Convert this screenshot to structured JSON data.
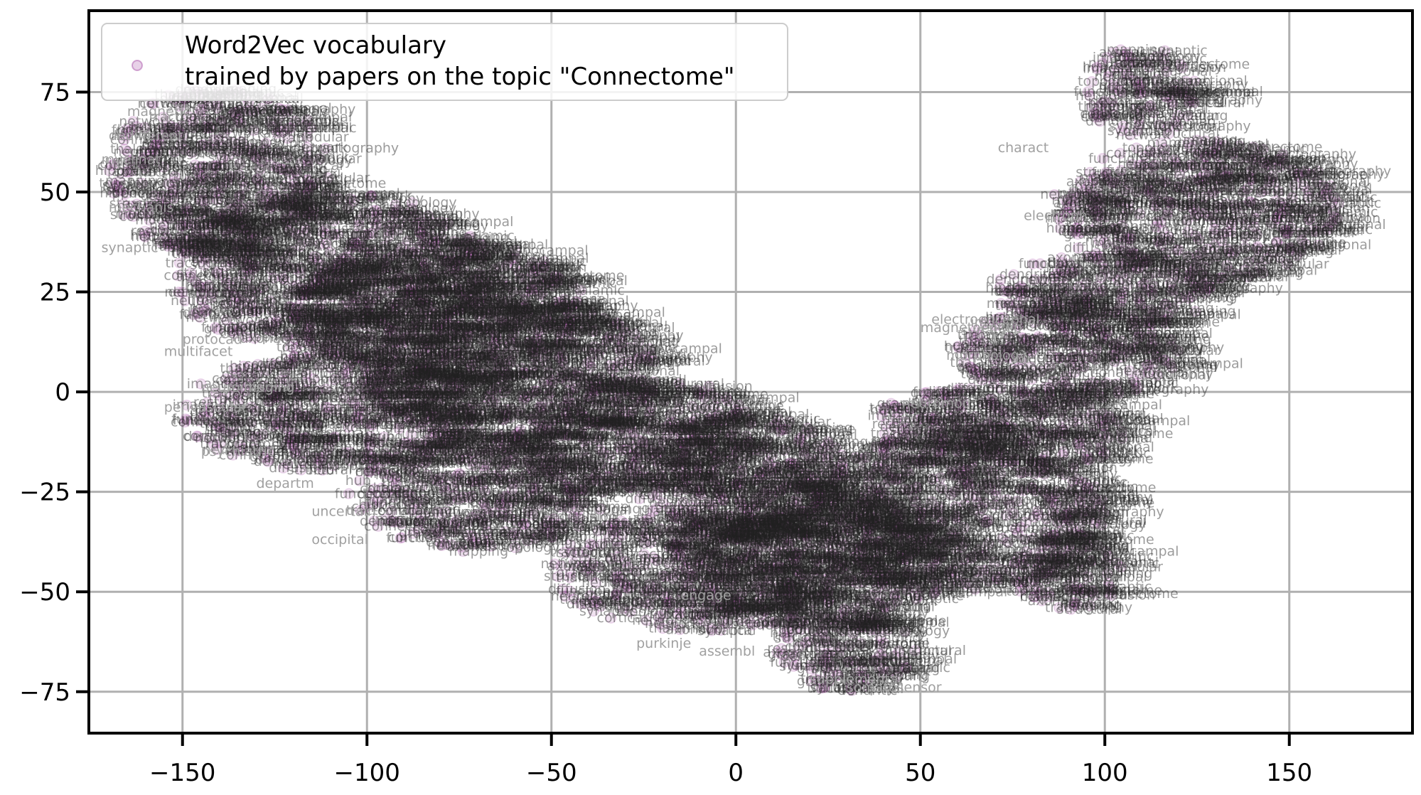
{
  "chart_data": {
    "type": "scatter",
    "legend": {
      "placement": "top-left",
      "entries": [
        {
          "line1": "Word2Vec vocabulary",
          "line2": "trained by papers on the topic \"Connectome\""
        }
      ]
    },
    "x_ticks": [
      -150,
      -100,
      -50,
      0,
      50,
      100,
      150
    ],
    "y_ticks": [
      -75,
      -50,
      -25,
      0,
      25,
      50,
      75
    ],
    "x_tick_labels": [
      "−150",
      "−100",
      "−50",
      "0",
      "50",
      "100",
      "150"
    ],
    "y_tick_labels": [
      "−75",
      "−50",
      "−25",
      "0",
      "25",
      "50",
      "75"
    ],
    "xlim": [
      -175,
      183
    ],
    "ylim": [
      -85,
      95
    ],
    "grid": true,
    "colors": {
      "marker": "#8b1a8b",
      "label_dark": "#222222",
      "label_light": "#a0a0a0",
      "grid": "#b0b0b0"
    },
    "clusters": [
      {
        "x": -140,
        "y": 55,
        "rx": 30,
        "ry": 22
      },
      {
        "x": -110,
        "y": 30,
        "rx": 45,
        "ry": 20
      },
      {
        "x": -80,
        "y": 20,
        "rx": 40,
        "ry": 18
      },
      {
        "x": -60,
        "y": 5,
        "rx": 40,
        "ry": 18
      },
      {
        "x": -110,
        "y": -5,
        "rx": 40,
        "ry": 15
      },
      {
        "x": -70,
        "y": -25,
        "rx": 35,
        "ry": 15
      },
      {
        "x": -30,
        "y": -10,
        "rx": 35,
        "ry": 15
      },
      {
        "x": 0,
        "y": -20,
        "rx": 30,
        "ry": 15
      },
      {
        "x": -10,
        "y": -45,
        "rx": 40,
        "ry": 15
      },
      {
        "x": 20,
        "y": -40,
        "rx": 40,
        "ry": 20
      },
      {
        "x": 30,
        "y": -65,
        "rx": 20,
        "ry": 10
      },
      {
        "x": 60,
        "y": -30,
        "rx": 40,
        "ry": 20
      },
      {
        "x": 70,
        "y": -10,
        "rx": 35,
        "ry": 12
      },
      {
        "x": 90,
        "y": 10,
        "rx": 30,
        "ry": 12
      },
      {
        "x": 100,
        "y": 25,
        "rx": 30,
        "ry": 10
      },
      {
        "x": 125,
        "y": 45,
        "rx": 40,
        "ry": 18
      },
      {
        "x": 110,
        "y": 75,
        "rx": 15,
        "ry": 12
      },
      {
        "x": 90,
        "y": -45,
        "rx": 15,
        "ry": 10
      }
    ],
    "sample_words": [
      "connectome",
      "neuronal",
      "synaptic",
      "cortical",
      "imaging",
      "tractography",
      "diffusion",
      "network",
      "functional",
      "structural",
      "axonal",
      "dendritic",
      "hippocampal",
      "thalamic",
      "mapping",
      "resting",
      "modular",
      "hub",
      "graph",
      "topology"
    ],
    "edge_words": [
      {
        "text": "electroencephal",
        "x": 53,
        "y": 17
      },
      {
        "text": "magnetoencep",
        "x": 50,
        "y": 15
      },
      {
        "text": "electroph",
        "x": 78,
        "y": 43
      },
      {
        "text": "somatosensor",
        "x": 30,
        "y": -75
      },
      {
        "text": "supplementar",
        "x": 20,
        "y": -73
      },
      {
        "text": "purkinje",
        "x": -27,
        "y": -64
      },
      {
        "text": "psychiatric",
        "x": -145,
        "y": -16
      },
      {
        "text": "neuroimaging",
        "x": -145,
        "y": 0
      },
      {
        "text": "multifacet",
        "x": -155,
        "y": 9
      },
      {
        "text": "protocad",
        "x": -150,
        "y": 12
      },
      {
        "text": "mechanis",
        "x": -170,
        "y": 45
      },
      {
        "text": "myelinat",
        "x": -172,
        "y": 57
      },
      {
        "text": "dedifferent",
        "x": -170,
        "y": 63
      },
      {
        "text": "magnetic",
        "x": -165,
        "y": 69
      },
      {
        "text": "synaptic",
        "x": -172,
        "y": 35
      },
      {
        "text": "perivascular",
        "x": -155,
        "y": -5
      },
      {
        "text": "uncertain",
        "x": -115,
        "y": -31
      },
      {
        "text": "occipital",
        "x": -115,
        "y": -38
      },
      {
        "text": "neuromod",
        "x": 45,
        "y": -4
      },
      {
        "text": "morphology",
        "x": 57,
        "y": 8
      },
      {
        "text": "charact",
        "x": 71,
        "y": 60
      },
      {
        "text": "assembl",
        "x": -10,
        "y": -66
      },
      {
        "text": "engage",
        "x": -15,
        "y": -52
      },
      {
        "text": "departm",
        "x": -130,
        "y": -24
      }
    ]
  }
}
